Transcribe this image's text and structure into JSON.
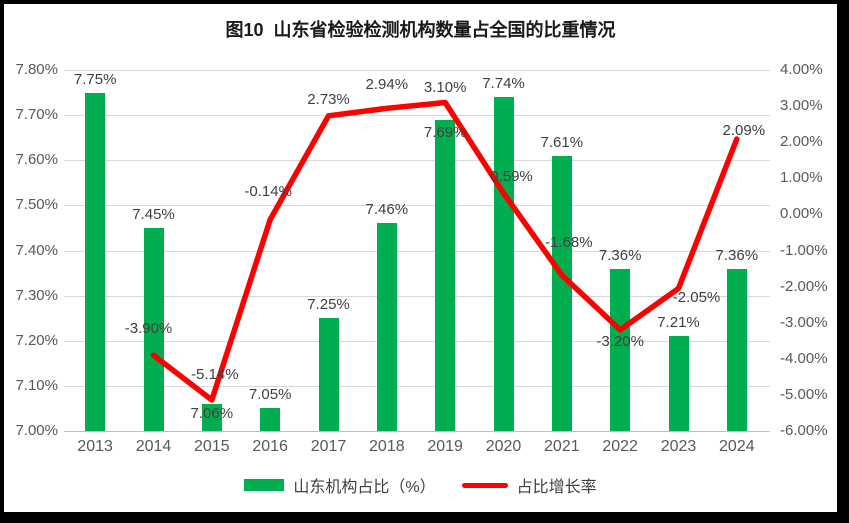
{
  "title": "图10  山东省检验检测机构数量占全国的比重情况",
  "colors": {
    "bar": "#00AE4F",
    "line": "#FE0000",
    "grid": "#D9D9D9",
    "label_text": "#404040",
    "axis_text": "#595959"
  },
  "legend": {
    "bar_label": "山东机构占比（%）",
    "line_label": "占比增长率"
  },
  "chart_data": {
    "type": "bar+line combo",
    "title": "图10  山东省检验检测机构数量占全国的比重情况",
    "categories": [
      "2013",
      "2014",
      "2015",
      "2016",
      "2017",
      "2018",
      "2019",
      "2020",
      "2021",
      "2022",
      "2023",
      "2024"
    ],
    "series": [
      {
        "name": "山东机构占比（%）",
        "type": "bar",
        "axis": "left",
        "color": "#00AE4F",
        "values": [
          7.75,
          7.45,
          7.06,
          7.05,
          7.25,
          7.46,
          7.69,
          7.74,
          7.61,
          7.36,
          7.21,
          7.36
        ],
        "labels": [
          "7.75%",
          "7.45%",
          "7.06%",
          "7.05%",
          "7.25%",
          "7.46%",
          "7.69%",
          "7.74%",
          "7.61%",
          "7.36%",
          "7.21%",
          "7.36%"
        ]
      },
      {
        "name": "占比增长率",
        "type": "line",
        "axis": "right",
        "color": "#FE0000",
        "values": [
          null,
          -3.9,
          -5.14,
          -0.14,
          2.73,
          2.94,
          3.1,
          0.59,
          -1.68,
          -3.2,
          -2.05,
          2.09
        ],
        "labels": [
          null,
          "-3.90%",
          "-5.14%",
          "-0.14%",
          "2.73%",
          "2.94%",
          "3.10%",
          "0.59%",
          "-1.68%",
          "-3.20%",
          "-2.05%",
          "2.09%"
        ]
      }
    ],
    "axes": {
      "left": {
        "min": 7.0,
        "max": 7.8,
        "step": 0.1,
        "tick_labels": [
          "7.80%",
          "7.70%",
          "7.60%",
          "7.50%",
          "7.40%",
          "7.30%",
          "7.20%",
          "7.10%",
          "7.00%"
        ]
      },
      "right": {
        "min": -6.0,
        "max": 4.0,
        "step": 1.0,
        "tick_labels": [
          "4.00%",
          "3.00%",
          "2.00%",
          "1.00%",
          "0.00%",
          "-1.00%",
          "-2.00%",
          "-3.00%",
          "-4.00%",
          "-5.00%",
          "-6.00%"
        ]
      }
    },
    "grid": true,
    "legend_position": "bottom"
  }
}
